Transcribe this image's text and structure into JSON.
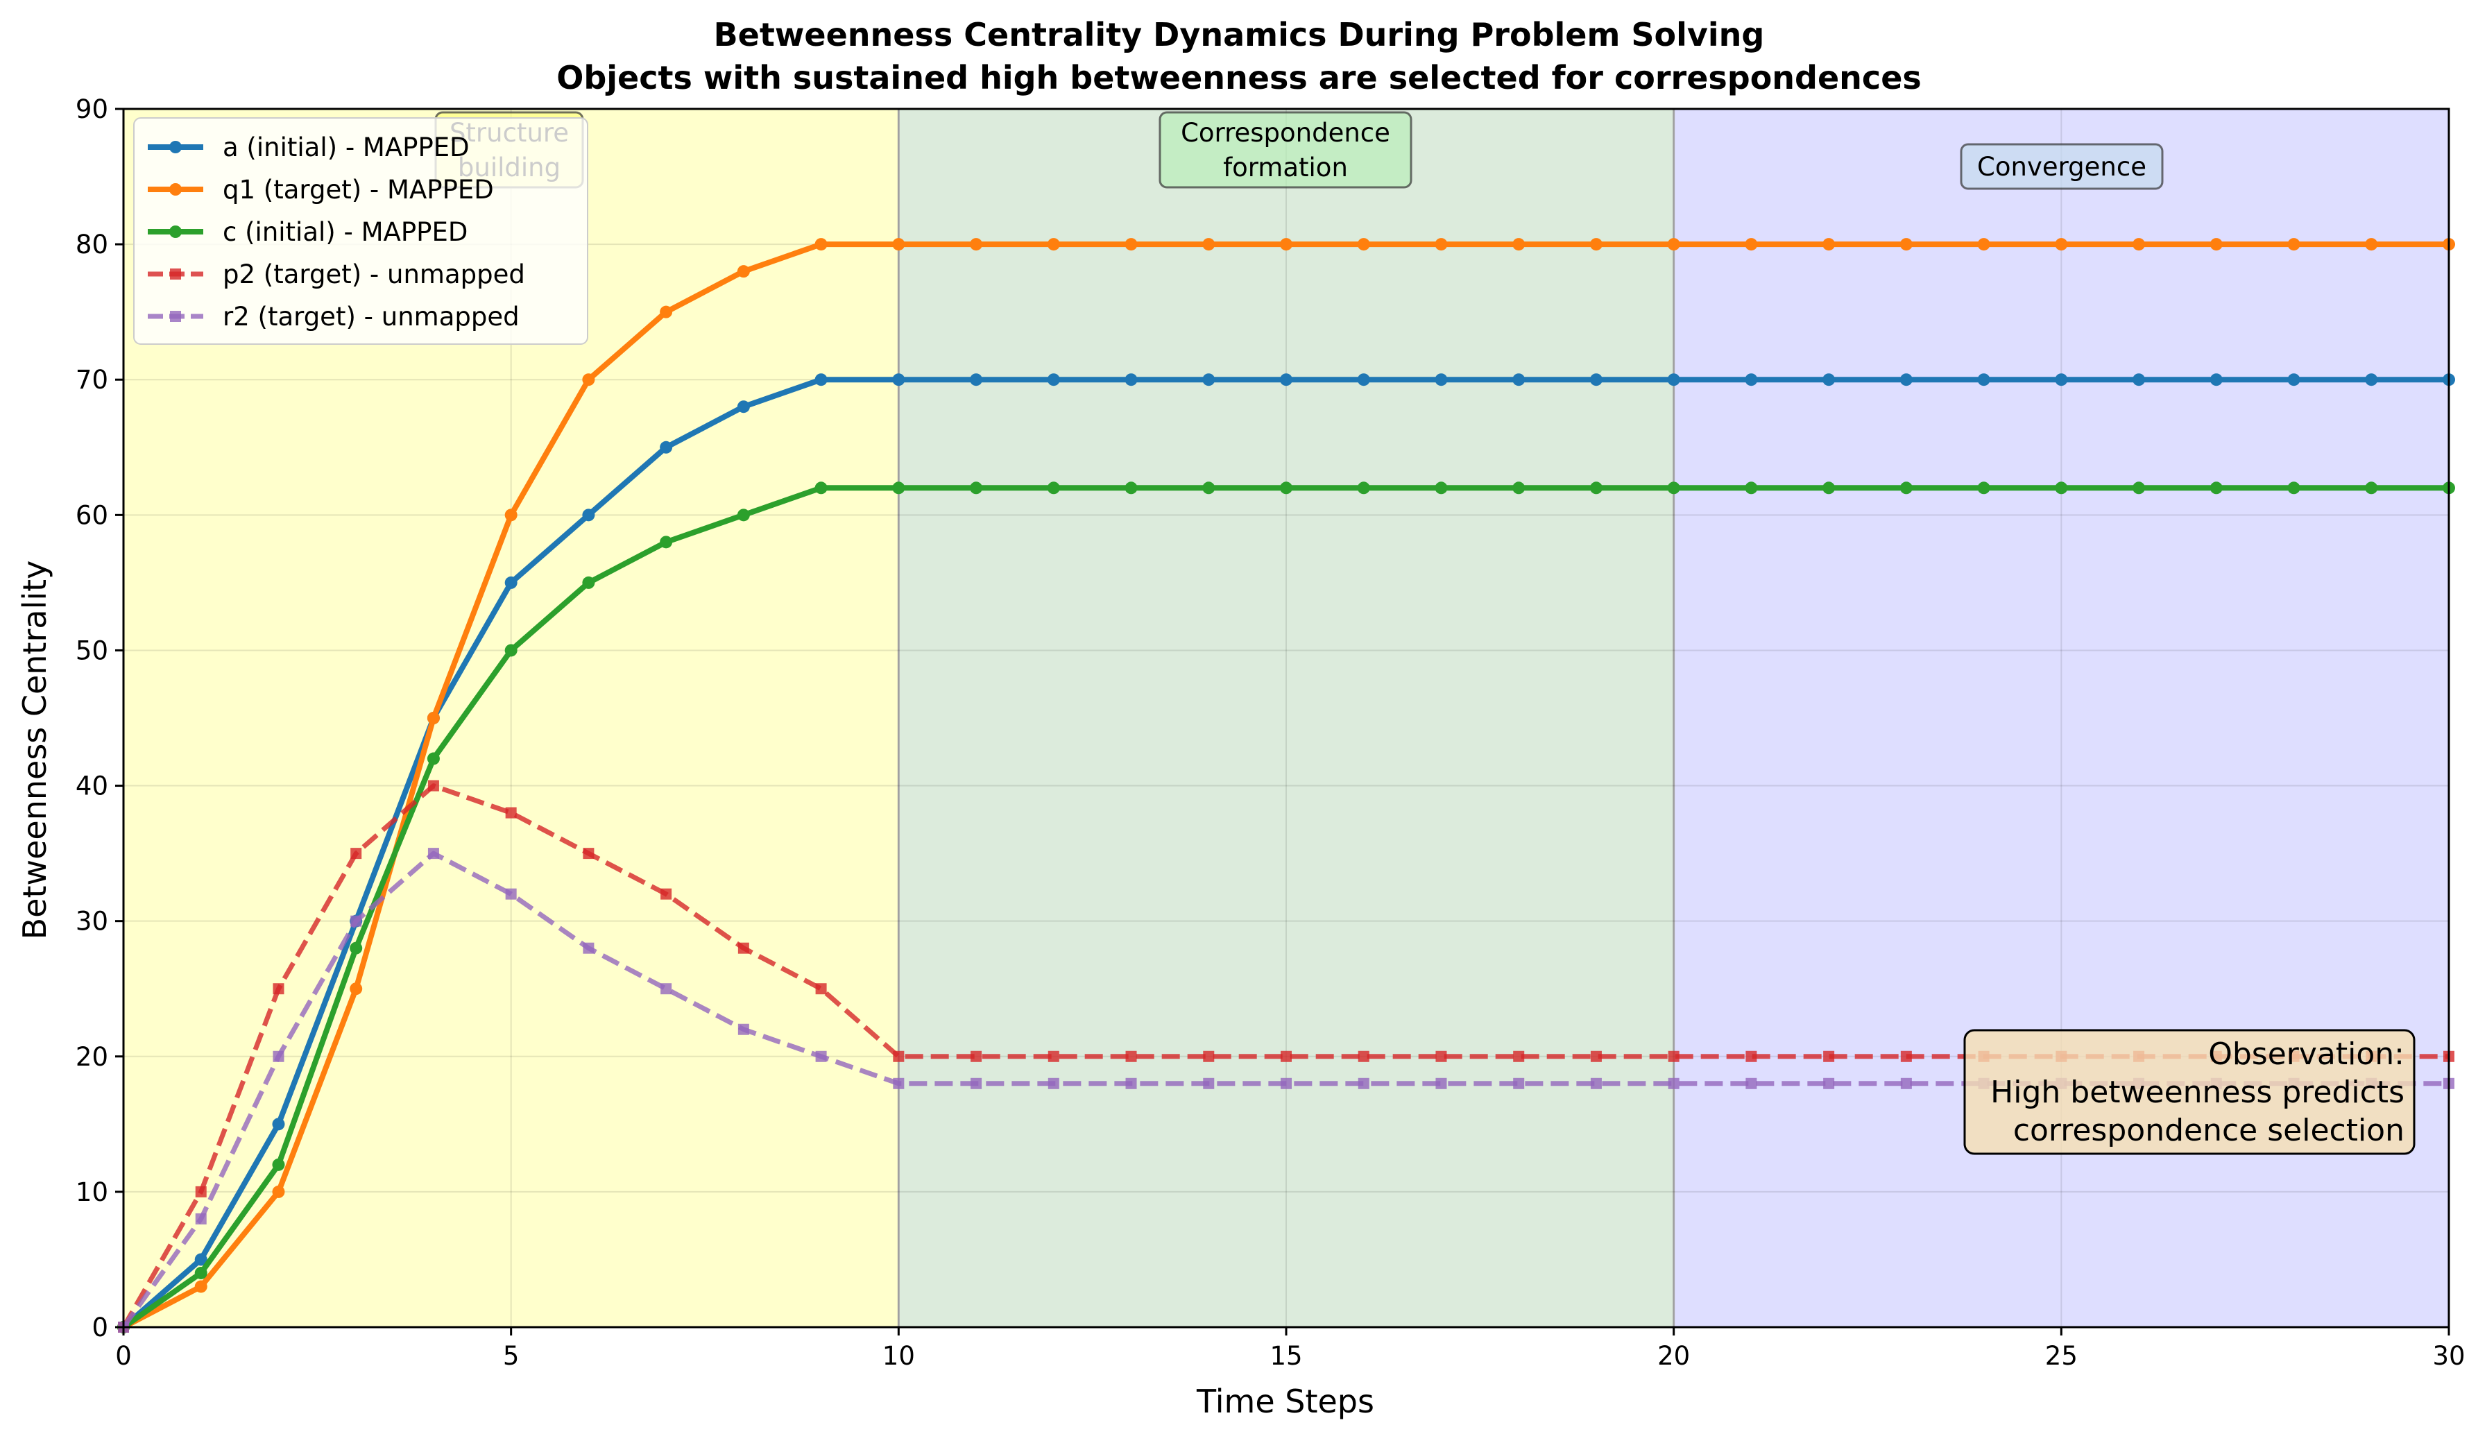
{
  "chart_data": {
    "type": "line",
    "title": "Betweenness Centrality Dynamics During Problem Solving",
    "subtitle": "Objects with sustained high betweenness are selected for correspondences",
    "xlabel": "Time Steps",
    "ylabel": "Betweenness Centrality",
    "xlim": [
      0,
      30
    ],
    "ylim": [
      0,
      90
    ],
    "xticks": [
      0,
      5,
      10,
      15,
      20,
      25,
      30
    ],
    "yticks": [
      0,
      10,
      20,
      30,
      40,
      50,
      60,
      70,
      80,
      90
    ],
    "grid": true,
    "legend_position": "top-left",
    "x": [
      0,
      1,
      2,
      3,
      4,
      5,
      6,
      7,
      8,
      9,
      10,
      11,
      12,
      13,
      14,
      15,
      16,
      17,
      18,
      19,
      20,
      21,
      22,
      23,
      24,
      25,
      26,
      27,
      28,
      29,
      30
    ],
    "series": [
      {
        "name": "a (initial) - MAPPED",
        "color": "#1f77b4",
        "style": "solid",
        "marker": "circle",
        "values": [
          0,
          5,
          15,
          30,
          45,
          55,
          60,
          65,
          68,
          70,
          70,
          70,
          70,
          70,
          70,
          70,
          70,
          70,
          70,
          70,
          70,
          70,
          70,
          70,
          70,
          70,
          70,
          70,
          70,
          70,
          70
        ]
      },
      {
        "name": "q1 (target) - MAPPED",
        "color": "#ff7f0e",
        "style": "solid",
        "marker": "circle",
        "values": [
          0,
          3,
          10,
          25,
          45,
          60,
          70,
          75,
          78,
          80,
          80,
          80,
          80,
          80,
          80,
          80,
          80,
          80,
          80,
          80,
          80,
          80,
          80,
          80,
          80,
          80,
          80,
          80,
          80,
          80,
          80
        ]
      },
      {
        "name": "c (initial) - MAPPED",
        "color": "#2ca02c",
        "style": "solid",
        "marker": "circle",
        "values": [
          0,
          4,
          12,
          28,
          42,
          50,
          55,
          58,
          60,
          62,
          62,
          62,
          62,
          62,
          62,
          62,
          62,
          62,
          62,
          62,
          62,
          62,
          62,
          62,
          62,
          62,
          62,
          62,
          62,
          62,
          62
        ]
      },
      {
        "name": "p2 (target) - unmapped",
        "color": "#d62728",
        "style": "dashed",
        "marker": "square",
        "values": [
          0,
          10,
          25,
          35,
          40,
          38,
          35,
          32,
          28,
          25,
          20,
          20,
          20,
          20,
          20,
          20,
          20,
          20,
          20,
          20,
          20,
          20,
          20,
          20,
          20,
          20,
          20,
          20,
          20,
          20,
          20
        ]
      },
      {
        "name": "r2 (target) - unmapped",
        "color": "#9467bd",
        "style": "dashed",
        "marker": "square",
        "values": [
          0,
          8,
          20,
          30,
          35,
          32,
          28,
          25,
          22,
          20,
          18,
          18,
          18,
          18,
          18,
          18,
          18,
          18,
          18,
          18,
          18,
          18,
          18,
          18,
          18,
          18,
          18,
          18,
          18,
          18,
          18
        ]
      }
    ],
    "phases": [
      {
        "label": [
          "Structure",
          "building"
        ],
        "x_range": [
          0,
          10
        ],
        "fill": "#ffffcc",
        "label_fill": "#ffff80"
      },
      {
        "label": [
          "Correspondence",
          "formation"
        ],
        "x_range": [
          10,
          20
        ],
        "fill": "#dcebdc",
        "label_fill": "#b9eeb9"
      },
      {
        "label": [
          "Convergence"
        ],
        "x_range": [
          20,
          30
        ],
        "fill": "#dedeff",
        "label_fill": "#c6dcee"
      }
    ],
    "annotation": {
      "lines": [
        "Observation:",
        "High betweenness predicts",
        "correspondence selection"
      ],
      "fill": "#f5deb3"
    }
  }
}
